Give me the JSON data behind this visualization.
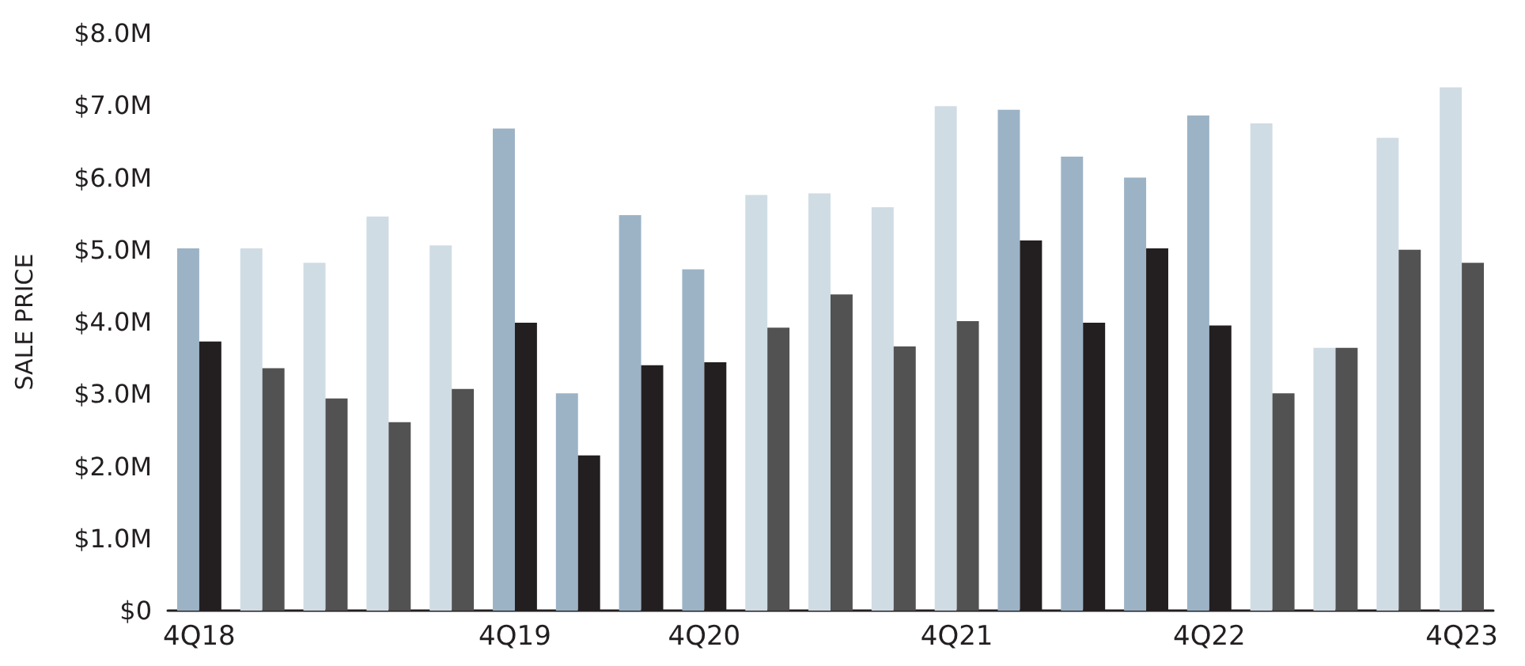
{
  "chart_data": {
    "type": "bar",
    "ylabel": "SALE PRICE",
    "categories": [
      "4Q18",
      null,
      null,
      null,
      null,
      "4Q19",
      null,
      null,
      "4Q20",
      null,
      null,
      null,
      "4Q21",
      null,
      null,
      null,
      "4Q22",
      null,
      null,
      null,
      "4Q23"
    ],
    "series": [
      {
        "colors": [
          "#9cb3c6",
          "#cfdce4",
          "#cfdce4",
          "#cfdce4",
          "#cfdce4",
          "#9cb3c6",
          "#9cb3c6",
          "#9cb3c6",
          "#9cb3c6",
          "#cfdce4",
          "#cfdce4",
          "#cfdce4",
          "#cfdce4",
          "#9cb3c6",
          "#9cb3c6",
          "#9cb3c6",
          "#9cb3c6",
          "#cfdce4",
          "#cfdce4",
          "#cfdce4",
          "#cfdce4"
        ],
        "values": [
          5.02,
          5.02,
          4.82,
          5.46,
          5.06,
          6.68,
          3.01,
          5.48,
          4.73,
          5.76,
          5.78,
          5.59,
          6.99,
          6.94,
          6.29,
          6.0,
          6.86,
          6.75,
          3.64,
          6.55,
          7.25
        ]
      },
      {
        "colors": [
          "#231f20",
          "#525252",
          "#525252",
          "#525252",
          "#525252",
          "#231f20",
          "#231f20",
          "#231f20",
          "#231f20",
          "#525252",
          "#525252",
          "#525252",
          "#525252",
          "#231f20",
          "#231f20",
          "#231f20",
          "#231f20",
          "#525252",
          "#525252",
          "#525252",
          "#525252"
        ],
        "values": [
          3.73,
          3.36,
          2.94,
          2.61,
          3.07,
          3.99,
          2.15,
          3.4,
          3.44,
          3.92,
          4.38,
          3.66,
          4.01,
          5.13,
          3.99,
          5.02,
          3.95,
          3.01,
          3.64,
          5.0,
          4.82
        ]
      }
    ],
    "ylim": [
      0,
      8
    ],
    "yticks": [
      {
        "value": 0,
        "label": "$0"
      },
      {
        "value": 1,
        "label": "$1.0M"
      },
      {
        "value": 2,
        "label": "$2.0M"
      },
      {
        "value": 3,
        "label": "$3.0M"
      },
      {
        "value": 4,
        "label": "$4.0M"
      },
      {
        "value": 5,
        "label": "$5.0M"
      },
      {
        "value": 6,
        "label": "$6.0M"
      },
      {
        "value": 7,
        "label": "$7.0M"
      },
      {
        "value": 8,
        "label": "$8.0M"
      }
    ]
  }
}
